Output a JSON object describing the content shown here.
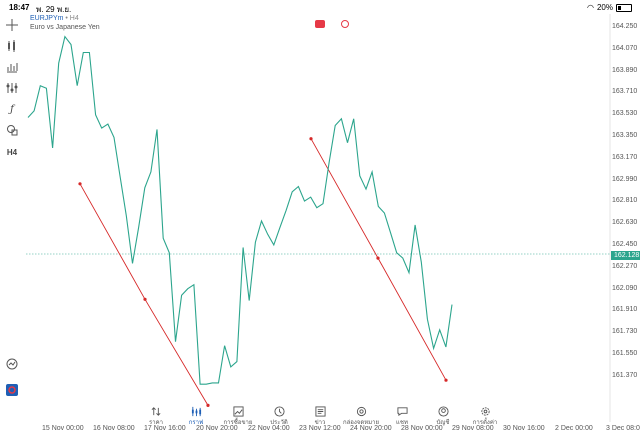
{
  "status": {
    "time": "18:47",
    "date": "พ. 29 พ.ย.",
    "battery": "20%"
  },
  "symbol": {
    "name": "EURJPYm",
    "timeframe": "• H4",
    "description": "Euro vs Japanese Yen"
  },
  "toolbar": {
    "icons": [
      "crosshair-icon",
      "candles-icon",
      "bars-icon",
      "indicators-icon",
      "function-icon",
      "shapes-icon"
    ],
    "timeframe_label": "H4"
  },
  "price": {
    "current": "162.128"
  },
  "yaxis_labels": [
    "164.250",
    "164.070",
    "163.890",
    "163.710",
    "163.530",
    "163.350",
    "163.170",
    "162.990",
    "162.810",
    "162.630",
    "162.450",
    "162.270",
    "162.090",
    "161.910",
    "161.730",
    "161.550",
    "161.370"
  ],
  "xaxis_labels": [
    "15 Nov 00:00",
    "16 Nov 08:00",
    "17 Nov 16:00",
    "20 Nov 20:00",
    "22 Nov 04:00",
    "23 Nov 12:00",
    "24 Nov 20:00",
    "28 Nov 00:00",
    "29 Nov 08:00",
    "30 Nov 16:00",
    "2 Dec 00:00",
    "3 Dec 08:0"
  ],
  "tabs": [
    {
      "label": "ราคา",
      "icon": "sort-icon"
    },
    {
      "label": "กราฟ",
      "icon": "chart-icon",
      "active": true
    },
    {
      "label": "การซื้อขาย",
      "icon": "trade-icon"
    },
    {
      "label": "ประวัติ",
      "icon": "history-icon"
    },
    {
      "label": "ข่าว",
      "icon": "news-icon"
    },
    {
      "label": "กล่องจดหมาย",
      "icon": "mail-icon"
    },
    {
      "label": "แชท",
      "icon": "chat-icon"
    },
    {
      "label": "บัญชี",
      "icon": "account-icon"
    },
    {
      "label": "การตั้งค่า",
      "icon": "settings-icon"
    }
  ],
  "colors": {
    "line": "#2ca58d",
    "trend": "#d62828",
    "accent": "#1e5fb5"
  },
  "chart_data": {
    "type": "line",
    "series": [
      {
        "values": [
          163.58,
          163.63,
          163.82,
          163.8,
          163.35,
          163.99,
          164.19,
          164.13,
          163.82,
          164.07,
          164.07,
          163.6,
          163.5,
          163.53,
          163.43,
          163.13,
          162.84,
          162.48,
          162.75,
          163.05,
          163.17,
          163.49,
          162.67,
          162.56,
          161.89,
          162.24,
          162.29,
          162.32,
          161.57,
          161.57,
          161.58,
          161.58,
          161.86,
          161.7,
          161.74,
          162.6,
          162.2,
          162.64,
          162.8,
          162.7,
          162.62,
          162.75,
          162.88,
          163.02,
          163.06,
          162.95,
          162.98,
          162.9,
          162.93,
          163.24,
          163.52,
          163.57,
          163.39,
          163.57,
          163.14,
          163.04,
          163.17,
          162.91,
          162.86,
          162.71,
          162.56,
          162.52,
          162.41,
          162.77,
          162.49,
          162.06,
          161.84,
          161.98,
          161.85,
          162.17
        ]
      }
    ],
    "trendlines": [
      {
        "points": [
          [
            163.08,
            0
          ],
          [
            162.21,
            1
          ],
          [
            161.41,
            2
          ]
        ]
      },
      {
        "points": [
          [
            163.42,
            0
          ],
          [
            162.52,
            1
          ],
          [
            161.6,
            2
          ]
        ]
      }
    ],
    "ylim": [
      161.3,
      164.33
    ],
    "grid": false
  }
}
